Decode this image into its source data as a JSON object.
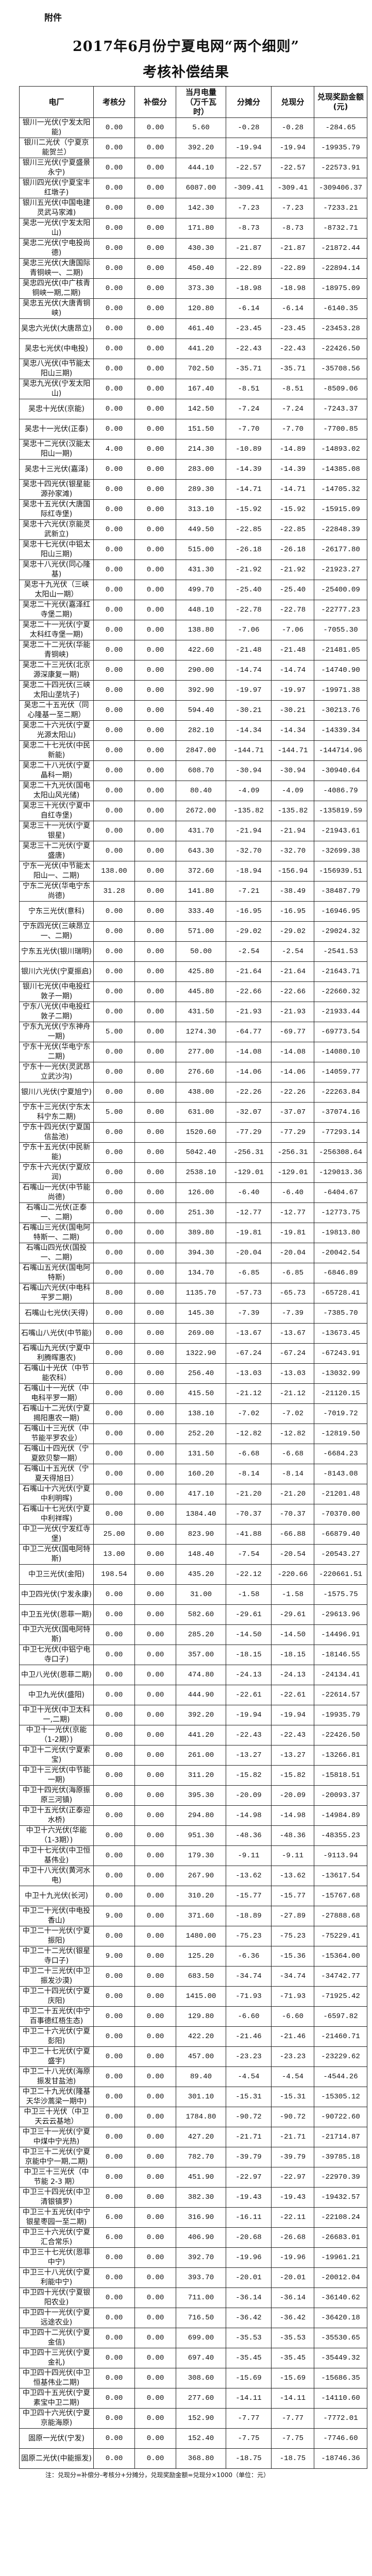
{
  "attachment_label": "附件",
  "title_line1": "2017年6月份宁夏电网“两个细则”",
  "title_line2": "考核补偿结果",
  "table": {
    "headers": [
      "电厂",
      "考核分",
      "补偿分",
      "当月电量（万千瓦时）",
      "分摊分",
      "兑现分",
      "兑现奖励金额(元)"
    ],
    "rows": [
      [
        "银川一光伏(宁发太阳能)",
        "0.00",
        "0.00",
        "5.60",
        "-0.28",
        "-0.28",
        "-284.65"
      ],
      [
        "银川二光伏（宁夏京能贺兰）",
        "0.00",
        "0.00",
        "392.20",
        "-19.94",
        "-19.94",
        "-19935.79"
      ],
      [
        "银川三光伏(宁夏盛景永宁)",
        "0.00",
        "0.00",
        "444.10",
        "-22.57",
        "-22.57",
        "-22573.91"
      ],
      [
        "银川四光伏(宁夏宝丰红墩子)",
        "0.00",
        "0.00",
        "6087.00",
        "-309.41",
        "-309.41",
        "-309406.37"
      ],
      [
        "银川五光伏(中国电建灵武马家滩)",
        "0.00",
        "0.00",
        "142.30",
        "-7.23",
        "-7.23",
        "-7233.21"
      ],
      [
        "吴忠一光伏(宁发太阳山)",
        "0.00",
        "0.00",
        "171.80",
        "-8.73",
        "-8.73",
        "-8732.71"
      ],
      [
        "吴忠二光伏(宁电投尚德)",
        "0.00",
        "0.00",
        "430.30",
        "-21.87",
        "-21.87",
        "-21872.44"
      ],
      [
        "吴忠三光伏(大唐国际青铜峡一、二期)",
        "0.00",
        "0.00",
        "450.40",
        "-22.89",
        "-22.89",
        "-22894.14"
      ],
      [
        "吴忠四光伏(中广核青铜峡一期,二期)",
        "0.00",
        "0.00",
        "373.30",
        "-18.98",
        "-18.98",
        "-18975.09"
      ],
      [
        "吴忠五光伏(大唐青铜峡)",
        "0.00",
        "0.00",
        "120.80",
        "-6.14",
        "-6.14",
        "-6140.35"
      ],
      [
        "吴忠六光伏(大唐昂立)",
        "0.00",
        "0.00",
        "461.40",
        "-23.45",
        "-23.45",
        "-23453.28"
      ],
      [
        "吴忠七光伏(中电投)",
        "0.00",
        "0.00",
        "441.20",
        "-22.43",
        "-22.43",
        "-22426.50"
      ],
      [
        "吴忠八光伏(中节能太阳山三期)",
        "0.00",
        "0.00",
        "702.50",
        "-35.71",
        "-35.71",
        "-35708.56"
      ],
      [
        "吴忠九光伏(宁发太阳山)",
        "0.00",
        "0.00",
        "167.40",
        "-8.51",
        "-8.51",
        "-8509.06"
      ],
      [
        "吴忠十光伏(京能)",
        "0.00",
        "0.00",
        "142.50",
        "-7.24",
        "-7.24",
        "-7243.37"
      ],
      [
        "吴忠十一光伏(正泰)",
        "0.00",
        "0.00",
        "151.50",
        "-7.70",
        "-7.70",
        "-7700.85"
      ],
      [
        "吴忠十二光伏(汉能太阳山一期)",
        "4.00",
        "0.00",
        "214.30",
        "-10.89",
        "-14.89",
        "-14893.02"
      ],
      [
        "吴忠十三光伏(嘉泽)",
        "0.00",
        "0.00",
        "283.00",
        "-14.39",
        "-14.39",
        "-14385.08"
      ],
      [
        "吴忠十四光伏(银星能源孙家滩)",
        "0.00",
        "0.00",
        "289.30",
        "-14.71",
        "-14.71",
        "-14705.32"
      ],
      [
        "吴忠十五光伏(大唐国际红寺堡)",
        "0.00",
        "0.00",
        "313.10",
        "-15.92",
        "-15.92",
        "-15915.09"
      ],
      [
        "吴忠十六光伏(京能灵武新立)",
        "0.00",
        "0.00",
        "449.50",
        "-22.85",
        "-22.85",
        "-22848.39"
      ],
      [
        "吴忠十七光伏(中铝太阳山三期)",
        "0.00",
        "0.00",
        "515.00",
        "-26.18",
        "-26.18",
        "-26177.80"
      ],
      [
        "吴忠十八光伏(同心隆基)",
        "0.00",
        "0.00",
        "431.30",
        "-21.92",
        "-21.92",
        "-21923.27"
      ],
      [
        "吴忠十九光伏（三峡太阳山一期）",
        "0.00",
        "0.00",
        "499.70",
        "-25.40",
        "-25.40",
        "-25400.09"
      ],
      [
        "吴忠二十光伏(嘉泽红寺堡二期)",
        "0.00",
        "0.00",
        "448.10",
        "-22.78",
        "-22.78",
        "-22777.23"
      ],
      [
        "吴忠二十一光伏(宁夏太科红寺堡一期)",
        "0.00",
        "0.00",
        "138.80",
        "-7.06",
        "-7.06",
        "-7055.30"
      ],
      [
        "吴忠二十二光伏(华能青铜峡)",
        "0.00",
        "0.00",
        "422.60",
        "-21.48",
        "-21.48",
        "-21481.05"
      ],
      [
        "吴忠二十三光伏(北京源深康复一期)",
        "0.00",
        "0.00",
        "290.00",
        "-14.74",
        "-14.74",
        "-14740.90"
      ],
      [
        "吴忠二十四光伏(三峡太阳山垄坑子)",
        "0.00",
        "0.00",
        "392.90",
        "-19.97",
        "-19.97",
        "-19971.38"
      ],
      [
        "吴忠二十五光伏（同心隆基一至二期）",
        "0.00",
        "0.00",
        "594.40",
        "-30.21",
        "-30.21",
        "-30213.76"
      ],
      [
        "吴忠二十六光伏(宁夏光源太阳山)",
        "0.00",
        "0.00",
        "282.10",
        "-14.34",
        "-14.34",
        "-14339.34"
      ],
      [
        "吴忠二十七光伏(中民新能)",
        "0.00",
        "0.00",
        "2847.00",
        "-144.71",
        "-144.71",
        "-144714.96"
      ],
      [
        "吴忠二十八光伏(宁夏晶科一期)",
        "0.00",
        "0.00",
        "608.70",
        "-30.94",
        "-30.94",
        "-30940.64"
      ],
      [
        "吴忠二十九光伏(国电太阳山风光储)",
        "0.00",
        "0.00",
        "80.40",
        "-4.09",
        "-4.09",
        "-4086.79"
      ],
      [
        "吴忠三十光伏(宁夏中自红寺堡)",
        "0.00",
        "0.00",
        "2672.00",
        "-135.82",
        "-135.82",
        "-135819.59"
      ],
      [
        "吴忠三十一光伏(宁夏银星)",
        "0.00",
        "0.00",
        "431.70",
        "-21.94",
        "-21.94",
        "-21943.61"
      ],
      [
        "吴忠三十二光伏(宁夏盛唐)",
        "0.00",
        "0.00",
        "643.30",
        "-32.70",
        "-32.70",
        "-32699.38"
      ],
      [
        "宁东一光伏(中节能太阳山一、二期)",
        "138.00",
        "0.00",
        "372.60",
        "-18.94",
        "-156.94",
        "-156939.51"
      ],
      [
        "宁东二光伏(华电宁东尚德)",
        "31.28",
        "0.00",
        "141.80",
        "-7.21",
        "-38.49",
        "-38487.79"
      ],
      [
        "宁东三光伏(意科)",
        "0.00",
        "0.00",
        "333.40",
        "-16.95",
        "-16.95",
        "-16946.95"
      ],
      [
        "宁东四光伏(三峡昂立一、二期)",
        "0.00",
        "0.00",
        "571.00",
        "-29.02",
        "-29.02",
        "-29024.32"
      ],
      [
        "宁东五光伏(银川瑞明)",
        "0.00",
        "0.00",
        "50.00",
        "-2.54",
        "-2.54",
        "-2541.53"
      ],
      [
        "银川六光伏(宁夏振启)",
        "0.00",
        "0.00",
        "425.80",
        "-21.64",
        "-21.64",
        "-21643.71"
      ],
      [
        "银川七光伏(中电投红敦子一期)",
        "0.00",
        "0.00",
        "445.80",
        "-22.66",
        "-22.66",
        "-22660.32"
      ],
      [
        "宁东八光伏(中电投红敦子二期)",
        "0.00",
        "0.00",
        "431.50",
        "-21.93",
        "-21.93",
        "-21933.44"
      ],
      [
        "宁东九光伏(宁东神舟一期)",
        "5.00",
        "0.00",
        "1274.30",
        "-64.77",
        "-69.77",
        "-69773.54"
      ],
      [
        "宁东十光伏(华电宁东二期)",
        "0.00",
        "0.00",
        "277.00",
        "-14.08",
        "-14.08",
        "-14080.10"
      ],
      [
        "宁东十一光伏(灵武昂立武沙沟)",
        "0.00",
        "0.00",
        "276.60",
        "-14.06",
        "-14.06",
        "-14059.77"
      ],
      [
        "银川八光伏(宁夏旭宁)",
        "0.00",
        "0.00",
        "438.00",
        "-22.26",
        "-22.26",
        "-22263.84"
      ],
      [
        "宁东十三光伏(宁东太科宁东二期)",
        "5.00",
        "0.00",
        "631.00",
        "-32.07",
        "-37.07",
        "-37074.16"
      ],
      [
        "宁东十四光伏(宁夏国信盐池)",
        "0.00",
        "0.00",
        "1520.60",
        "-77.29",
        "-77.29",
        "-77293.14"
      ],
      [
        "宁东十五光伏(中民新能)",
        "0.00",
        "0.00",
        "5042.40",
        "-256.31",
        "-256.31",
        "-256308.64"
      ],
      [
        "宁东十六光伏(宁夏欣润)",
        "0.00",
        "0.00",
        "2538.10",
        "-129.01",
        "-129.01",
        "-129013.36"
      ],
      [
        "石嘴山一光伏(中节能尚德)",
        "0.00",
        "0.00",
        "126.00",
        "-6.40",
        "-6.40",
        "-6404.67"
      ],
      [
        "石嘴山二光伏(正泰一、二期)",
        "0.00",
        "0.00",
        "251.30",
        "-12.77",
        "-12.77",
        "-12773.75"
      ],
      [
        "石嘴山三光伏(国电阿特斯一、二期)",
        "0.00",
        "0.00",
        "389.80",
        "-19.81",
        "-19.81",
        "-19813.80"
      ],
      [
        "石嘴山四光伏(国投一、二期)",
        "0.00",
        "0.00",
        "394.30",
        "-20.04",
        "-20.04",
        "-20042.54"
      ],
      [
        "石嘴山五光伏(国电阿特斯)",
        "0.00",
        "0.00",
        "134.70",
        "-6.85",
        "-6.85",
        "-6846.89"
      ],
      [
        "石嘴山六光伏(中电科平罗二期)",
        "8.00",
        "0.00",
        "1135.70",
        "-57.73",
        "-65.73",
        "-65728.41"
      ],
      [
        "石嘴山七光伏(天得)",
        "0.00",
        "0.00",
        "145.30",
        "-7.39",
        "-7.39",
        "-7385.70"
      ],
      [
        "石嘴山八光伏(中节能)",
        "0.00",
        "0.00",
        "269.00",
        "-13.67",
        "-13.67",
        "-13673.45"
      ],
      [
        "石嘴山九光伏(宁夏中利腾晖惠农)",
        "0.00",
        "0.00",
        "1322.90",
        "-67.24",
        "-67.24",
        "-67243.91"
      ],
      [
        "石嘴山十光伏（中节能农科）",
        "0.00",
        "0.00",
        "256.40",
        "-13.03",
        "-13.03",
        "-13032.99"
      ],
      [
        "石嘴山十一光伏（中电科平罗一期）",
        "0.00",
        "0.00",
        "415.50",
        "-21.12",
        "-21.12",
        "-21120.15"
      ],
      [
        "石嘴山十二光伏(宁夏揭阳惠农一期)",
        "0.00",
        "0.00",
        "138.10",
        "-7.02",
        "-7.02",
        "-7019.72"
      ],
      [
        "石嘴山十三光伏（中节能平罗农业）",
        "0.00",
        "0.00",
        "252.20",
        "-12.82",
        "-12.82",
        "-12819.50"
      ],
      [
        "石嘴山十四光伏（宁夏欧贝黎一期）",
        "0.00",
        "0.00",
        "131.50",
        "-6.68",
        "-6.68",
        "-6684.23"
      ],
      [
        "石嘴山十五光伏（宁夏天得旭日）",
        "0.00",
        "0.00",
        "160.20",
        "-8.14",
        "-8.14",
        "-8143.08"
      ],
      [
        "石嘴山十六光伏(宁夏中利明晖)",
        "0.00",
        "0.00",
        "417.10",
        "-21.20",
        "-21.20",
        "-21201.48"
      ],
      [
        "石嘴山十七光伏(宁夏中利祥晖)",
        "0.00",
        "0.00",
        "1384.40",
        "-70.37",
        "-70.37",
        "-70370.00"
      ],
      [
        "中卫一光伏(宁发红寺堡)",
        "25.00",
        "0.00",
        "823.90",
        "-41.88",
        "-66.88",
        "-66879.40"
      ],
      [
        "中卫二光伏(国电阿特斯)",
        "13.00",
        "0.00",
        "148.40",
        "-7.54",
        "-20.54",
        "-20543.27"
      ],
      [
        "中卫三光伏(金阳)",
        "198.54",
        "0.00",
        "435.20",
        "-22.12",
        "-220.66",
        "-220661.51"
      ],
      [
        "中卫四光伏(宁发永康)",
        "0.00",
        "0.00",
        "31.00",
        "-1.58",
        "-1.58",
        "-1575.75"
      ],
      [
        "中卫五光伏(恩菲一期)",
        "0.00",
        "0.00",
        "582.60",
        "-29.61",
        "-29.61",
        "-29613.96"
      ],
      [
        "中卫六光伏(国电阿特斯)",
        "0.00",
        "0.00",
        "285.20",
        "-14.50",
        "-14.50",
        "-14496.91"
      ],
      [
        "中卫七光伏(中铝宁电寺口子)",
        "0.00",
        "0.00",
        "357.00",
        "-18.15",
        "-18.15",
        "-18146.55"
      ],
      [
        "中卫八光伏(恩菲二期)",
        "0.00",
        "0.00",
        "474.80",
        "-24.13",
        "-24.13",
        "-24134.41"
      ],
      [
        "中卫九光伏(盛阳)",
        "0.00",
        "0.00",
        "444.90",
        "-22.61",
        "-22.61",
        "-22614.57"
      ],
      [
        "中卫十光伏(中卫太科一,二期)",
        "0.00",
        "0.00",
        "392.20",
        "-19.94",
        "-19.94",
        "-19935.79"
      ],
      [
        "中卫十一光伏(京能（1-2期）)",
        "0.00",
        "0.00",
        "441.20",
        "-22.43",
        "-22.43",
        "-22426.50"
      ],
      [
        "中卫十二光伏(宁夏索宝)",
        "0.00",
        "0.00",
        "261.00",
        "-13.27",
        "-13.27",
        "-13266.81"
      ],
      [
        "中卫十三光伏(中节能一期)",
        "0.00",
        "0.00",
        "311.20",
        "-15.82",
        "-15.82",
        "-15818.51"
      ],
      [
        "中卫十四光伏(海原振原三河镇)",
        "0.00",
        "0.00",
        "395.30",
        "-20.09",
        "-20.09",
        "-20093.37"
      ],
      [
        "中卫十五光伏(正泰迎水桥)",
        "0.00",
        "0.00",
        "294.80",
        "-14.98",
        "-14.98",
        "-14984.89"
      ],
      [
        "中卫十六光伏(华能（1-3期）)",
        "0.00",
        "0.00",
        "951.30",
        "-48.36",
        "-48.36",
        "-48355.23"
      ],
      [
        "中卫十七光伏(中卫恒基伟业)",
        "0.00",
        "0.00",
        "179.30",
        "-9.11",
        "-9.11",
        "-9113.94"
      ],
      [
        "中卫十八光伏(黄河水电)",
        "0.00",
        "0.00",
        "267.90",
        "-13.62",
        "-13.62",
        "-13617.54"
      ],
      [
        "中卫十九光伏(长河)",
        "0.00",
        "0.00",
        "310.20",
        "-15.77",
        "-15.77",
        "-15767.68"
      ],
      [
        "中卫二十光伏(中电投香山)",
        "9.00",
        "0.00",
        "371.60",
        "-18.89",
        "-27.89",
        "-27888.68"
      ],
      [
        "中卫二十一光伏(宁夏振阳)",
        "0.00",
        "0.00",
        "1480.00",
        "-75.23",
        "-75.23",
        "-75229.41"
      ],
      [
        "中卫二十二光伏(银星寺口子)",
        "9.00",
        "0.00",
        "125.20",
        "-6.36",
        "-15.36",
        "-15364.00"
      ],
      [
        "中卫二十三光伏(中卫振发沙漠)",
        "0.00",
        "0.00",
        "683.50",
        "-34.74",
        "-34.74",
        "-34742.77"
      ],
      [
        "中卫二十四光伏(宁夏庆阳)",
        "0.00",
        "0.00",
        "1415.00",
        "-71.93",
        "-71.93",
        "-71925.42"
      ],
      [
        "中卫二十五光伏(中宁百事德红梧生态)",
        "0.00",
        "0.00",
        "129.80",
        "-6.60",
        "-6.60",
        "-6597.82"
      ],
      [
        "中卫二十六光伏(宁夏彭阳)",
        "0.00",
        "0.00",
        "422.20",
        "-21.46",
        "-21.46",
        "-21460.71"
      ],
      [
        "中卫二十七光伏(宁夏盛宇)",
        "0.00",
        "0.00",
        "457.00",
        "-23.23",
        "-23.23",
        "-23229.62"
      ],
      [
        "中卫二十八光伏(海原振发甘盐池)",
        "0.00",
        "0.00",
        "89.40",
        "-4.54",
        "-4.54",
        "-4544.26"
      ],
      [
        "中卫二十九光伏(隆基天华沙蒿梁一期中)",
        "0.00",
        "0.00",
        "301.10",
        "-15.31",
        "-15.31",
        "-15305.12"
      ],
      [
        "中卫三十光伏（中卫天云云基地）",
        "0.00",
        "0.00",
        "1784.80",
        "-90.72",
        "-90.72",
        "-90722.60"
      ],
      [
        "中卫三十一光伏(宁夏中煤中宁光热)",
        "0.00",
        "0.00",
        "427.20",
        "-21.71",
        "-21.71",
        "-21714.87"
      ],
      [
        "中卫三十二光伏(宁夏京能中宁一期,二期)",
        "0.00",
        "0.00",
        "782.70",
        "-39.79",
        "-39.79",
        "-39785.18"
      ],
      [
        "中卫三十三光伏（中节能 2-3 期）",
        "0.00",
        "0.00",
        "451.90",
        "-22.97",
        "-22.97",
        "-22970.39"
      ],
      [
        "中卫三十四光伏(中卫清银镇罗)",
        "0.00",
        "0.00",
        "382.30",
        "-19.43",
        "-19.43",
        "-19432.57"
      ],
      [
        "中卫三十五光伏(中宁银星枣园一至二期)",
        "6.00",
        "0.00",
        "316.90",
        "-16.11",
        "-22.11",
        "-22108.24"
      ],
      [
        "中卫三十六光伏(宁夏汇合常乐)",
        "6.00",
        "0.00",
        "406.90",
        "-20.68",
        "-26.68",
        "-26683.01"
      ],
      [
        "中卫三十七光伏(恩菲中宁)",
        "0.00",
        "0.00",
        "392.70",
        "-19.96",
        "-19.96",
        "-19961.21"
      ],
      [
        "中卫三十八光伏(宁夏利能中宁)",
        "0.00",
        "0.00",
        "393.70",
        "-20.01",
        "-20.01",
        "-20012.04"
      ],
      [
        "中卫四十光伏(宁夏银阳农业)",
        "0.00",
        "0.00",
        "711.00",
        "-36.14",
        "-36.14",
        "-36140.62"
      ],
      [
        "中卫四十一光伏(宁夏远途农业)",
        "0.00",
        "0.00",
        "716.50",
        "-36.42",
        "-36.42",
        "-36420.18"
      ],
      [
        "中卫四十二光伏(宁夏金信)",
        "0.00",
        "0.00",
        "699.00",
        "-35.53",
        "-35.53",
        "-35530.65"
      ],
      [
        "中卫四十三光伏(宁夏金礼)",
        "0.00",
        "0.00",
        "697.40",
        "-35.45",
        "-35.45",
        "-35449.32"
      ],
      [
        "中卫四十四光伏(中卫恒基伟业二期)",
        "0.00",
        "0.00",
        "308.60",
        "-15.69",
        "-15.69",
        "-15686.35"
      ],
      [
        "中卫四十五光伏(宁夏素宝中卫二期)",
        "0.00",
        "0.00",
        "277.60",
        "-14.11",
        "-14.11",
        "-14110.60"
      ],
      [
        "中卫四十六光伏(宁夏京能海原)",
        "0.00",
        "0.00",
        "152.90",
        "-7.77",
        "-7.77",
        "-7772.01"
      ],
      [
        "固原一光伏(宁发)",
        "0.00",
        "0.00",
        "152.40",
        "-7.75",
        "-7.75",
        "-7746.60"
      ],
      [
        "固原二光伏(中能振发)",
        "0.00",
        "0.00",
        "368.80",
        "-18.75",
        "-18.75",
        "-18746.36"
      ]
    ]
  },
  "note": "注：兑现分=补偿分-考核分+分摊分，兑现奖励金额=兑现分×1000（单位：元）"
}
